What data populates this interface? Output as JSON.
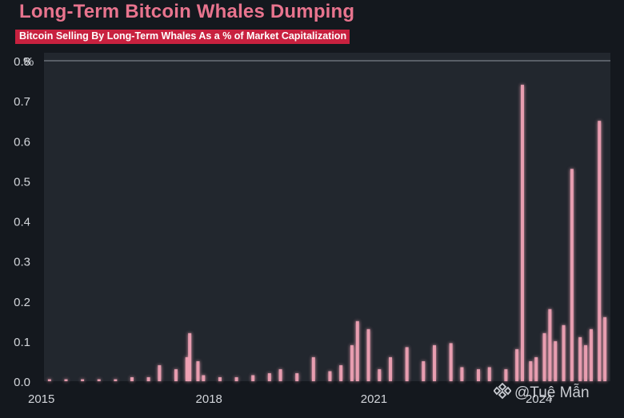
{
  "title": "Long-Term Bitcoin Whales Dumping",
  "subtitle": "Bitcoin Selling By Long-Term Whales As a % of Market Capitalization",
  "watermark": "@Tuệ Mẫn",
  "colors": {
    "background": "#14181e",
    "plot_background": "#22272e",
    "bar": "#f2a3b6",
    "title": "#e8748e",
    "subtitle_bg": "#c8213f",
    "axis_text": "#d2d5da"
  },
  "icons": {
    "watermark_logo": "binance-logo-icon"
  },
  "chart_data": {
    "type": "bar",
    "ylabel": "%",
    "ylim": [
      0,
      0.8
    ],
    "xlim": [
      2015,
      2025.3
    ],
    "y_ticks": [
      "0.0",
      "0.1",
      "0.2",
      "0.3",
      "0.4",
      "0.5",
      "0.6",
      "0.7",
      "0.8"
    ],
    "x_ticks": [
      {
        "value": 2015,
        "label": "2015"
      },
      {
        "value": 2018,
        "label": "2018"
      },
      {
        "value": 2021,
        "label": "2021"
      },
      {
        "value": 2024,
        "label": "2024"
      }
    ],
    "grid": false,
    "reference_line": 0.8,
    "series": [
      {
        "x": [
          2015.1,
          2015.4,
          2015.7,
          2016.0,
          2016.3,
          2016.6,
          2016.9,
          2017.1,
          2017.4,
          2017.6,
          2017.65,
          2017.8,
          2017.9,
          2018.2,
          2018.5,
          2018.8,
          2019.1,
          2019.3,
          2019.6,
          2019.9,
          2020.2,
          2020.4,
          2020.6,
          2020.7,
          2020.9,
          2021.1,
          2021.3,
          2021.6,
          2021.9,
          2022.1,
          2022.4,
          2022.6,
          2022.9,
          2023.1,
          2023.4,
          2023.6,
          2023.7,
          2023.85,
          2023.95,
          2024.1,
          2024.2,
          2024.3,
          2024.45,
          2024.6,
          2024.75,
          2024.85,
          2024.95,
          2025.1,
          2025.2
        ],
        "values": [
          0.005,
          0.005,
          0.005,
          0.005,
          0.005,
          0.01,
          0.01,
          0.04,
          0.03,
          0.06,
          0.12,
          0.05,
          0.015,
          0.01,
          0.01,
          0.015,
          0.02,
          0.03,
          0.02,
          0.06,
          0.025,
          0.04,
          0.09,
          0.15,
          0.13,
          0.03,
          0.06,
          0.085,
          0.05,
          0.09,
          0.095,
          0.035,
          0.03,
          0.035,
          0.03,
          0.08,
          0.74,
          0.05,
          0.06,
          0.12,
          0.18,
          0.1,
          0.14,
          0.53,
          0.11,
          0.09,
          0.13,
          0.65,
          0.16
        ]
      }
    ]
  }
}
